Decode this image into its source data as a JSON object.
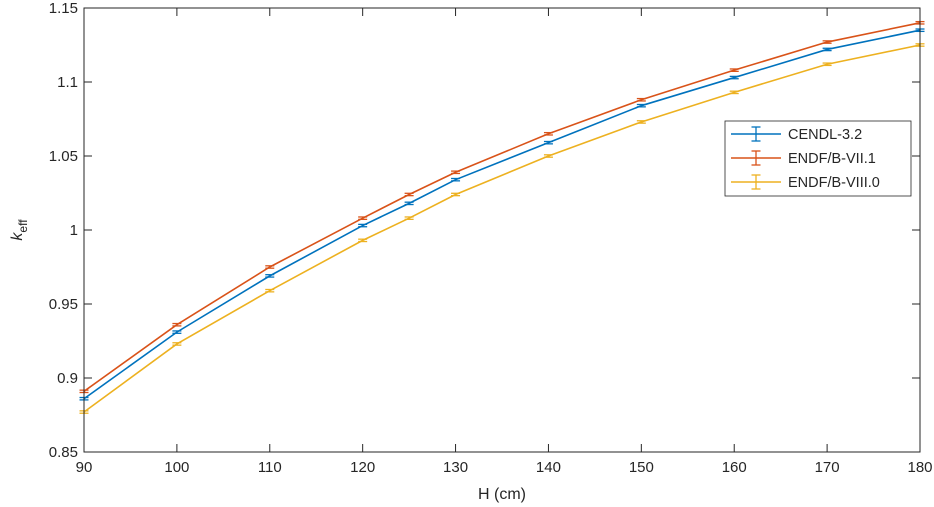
{
  "chart_data": {
    "type": "line",
    "title": "",
    "xlabel": "H (cm)",
    "ylabel_main": "k",
    "ylabel_sub": "eff",
    "xlim": [
      90,
      180
    ],
    "ylim": [
      0.85,
      1.15
    ],
    "xticks": [
      90,
      100,
      110,
      120,
      130,
      140,
      150,
      160,
      170,
      180
    ],
    "yticks": [
      0.85,
      0.9,
      0.95,
      1,
      1.05,
      1.1,
      1.15
    ],
    "ytick_labels": [
      "0.85",
      "0.9",
      "0.95",
      "1",
      "1.05",
      "1.1",
      "1.15"
    ],
    "grid": false,
    "legend_position": "right",
    "x": [
      90,
      100,
      110,
      120,
      125,
      130,
      140,
      150,
      160,
      170,
      180
    ],
    "error_bar": 0.0008,
    "series": [
      {
        "name": "CENDL-3.2",
        "color": "#0072BD",
        "values": [
          0.886,
          0.931,
          0.969,
          1.003,
          1.018,
          1.034,
          1.059,
          1.084,
          1.103,
          1.122,
          1.135
        ]
      },
      {
        "name": "ENDF/B-VII.1",
        "color": "#D95319",
        "values": [
          0.891,
          0.936,
          0.975,
          1.008,
          1.024,
          1.039,
          1.065,
          1.088,
          1.108,
          1.127,
          1.14
        ]
      },
      {
        "name": "ENDF/B-VIII.0",
        "color": "#EDB120",
        "values": [
          0.877,
          0.923,
          0.959,
          0.993,
          1.008,
          1.024,
          1.05,
          1.073,
          1.093,
          1.112,
          1.125
        ]
      }
    ]
  }
}
